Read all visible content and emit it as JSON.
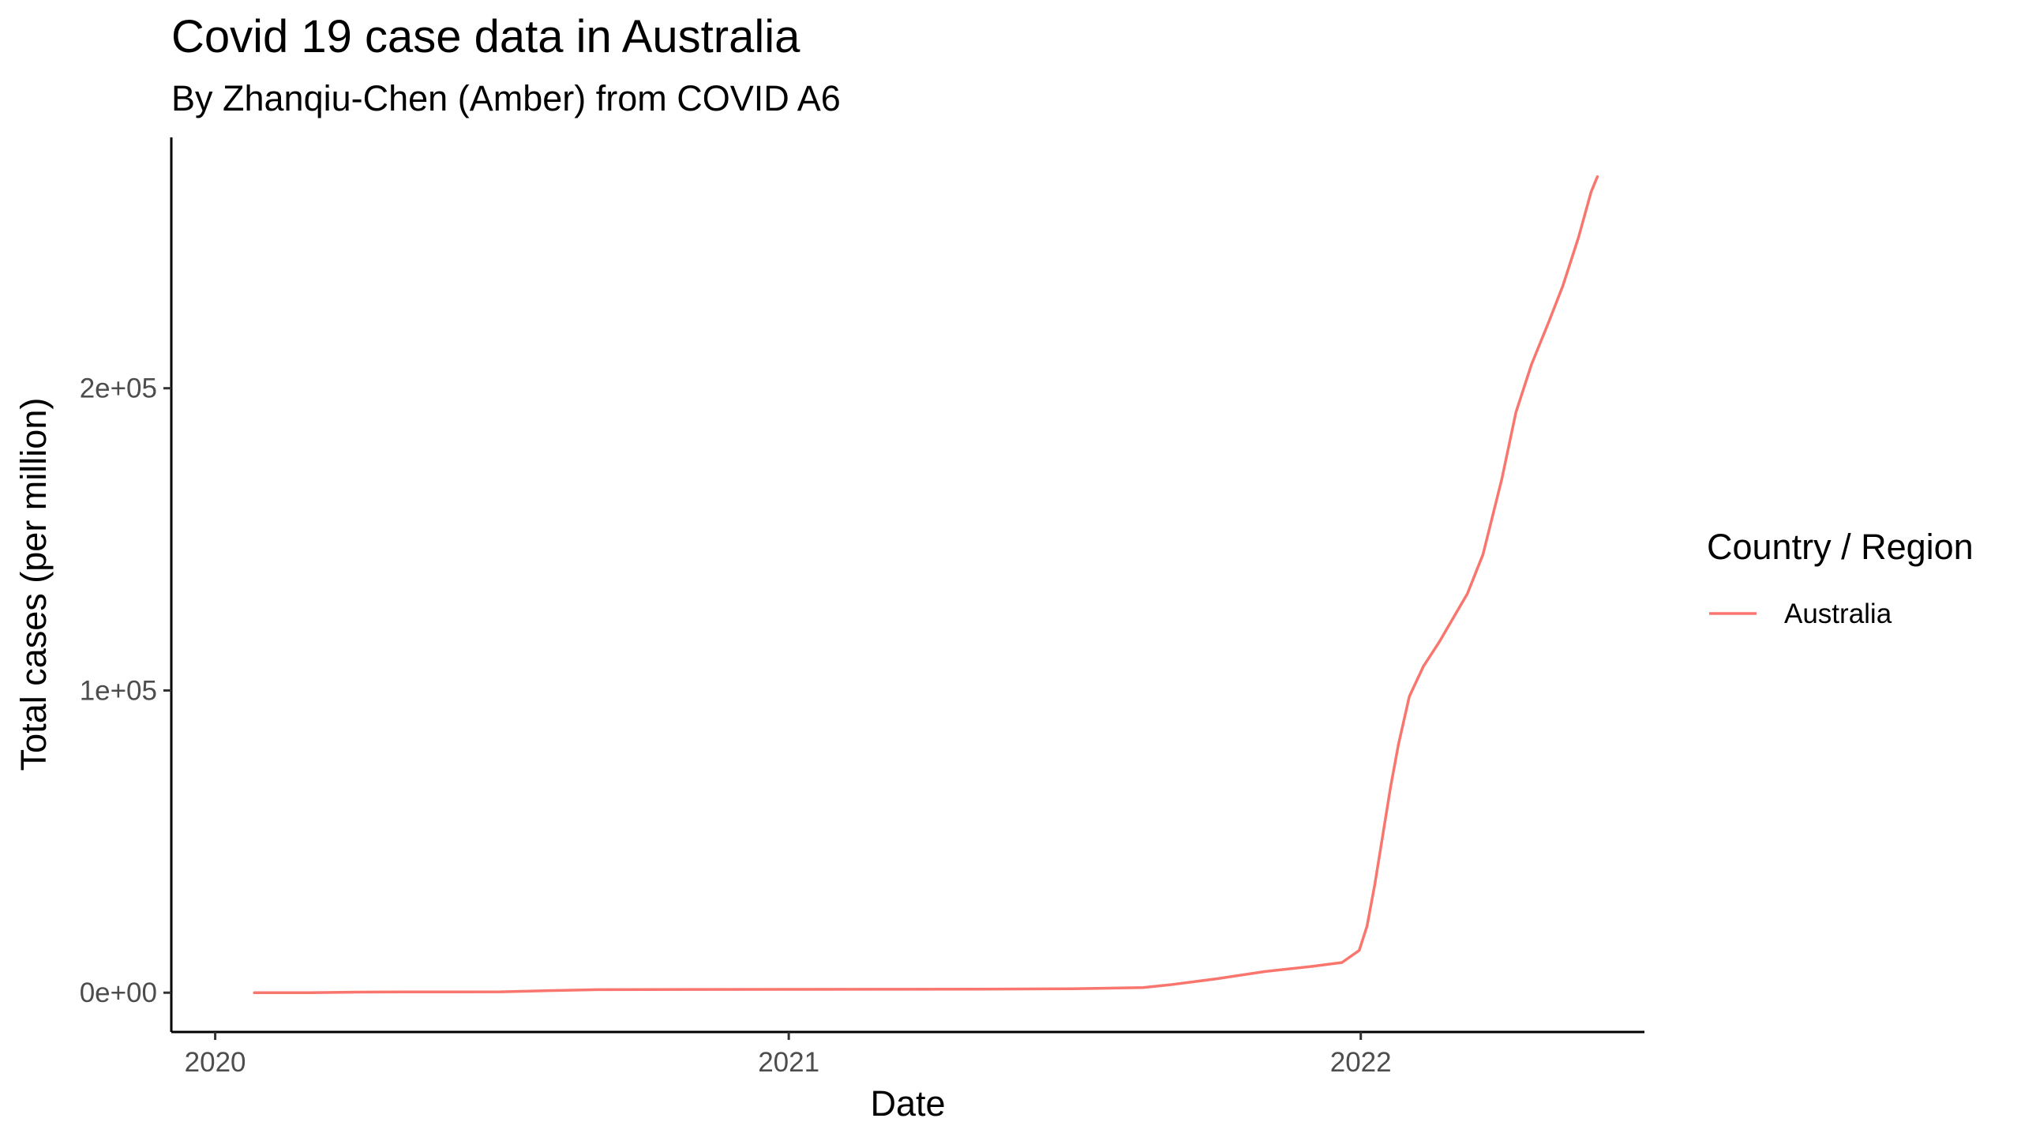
{
  "chart_data": {
    "type": "line",
    "title": "Covid 19 case data in Australia",
    "subtitle": "By Zhanqiu-Chen (Amber) from COVID A6",
    "xlabel": "Date",
    "ylabel": "Total cases (per million)",
    "x_scale": "date",
    "xlim": [
      "2019-12-04",
      "2022-07-01"
    ],
    "ylim": [
      -13000,
      283000
    ],
    "x_ticks": [
      {
        "value": "2020-01-01",
        "label": "2020"
      },
      {
        "value": "2021-01-01",
        "label": "2021"
      },
      {
        "value": "2022-01-01",
        "label": "2022"
      }
    ],
    "y_ticks": [
      {
        "value": 0,
        "label": "0e+00"
      },
      {
        "value": 100000,
        "label": "1e+05"
      },
      {
        "value": 200000,
        "label": "2e+05"
      }
    ],
    "grid": false,
    "legend": {
      "title": "Country / Region",
      "position": "right"
    },
    "series": [
      {
        "name": "Australia",
        "color": "#F8766D",
        "points": [
          [
            "2020-01-26",
            0
          ],
          [
            "2020-03-01",
            3
          ],
          [
            "2020-04-01",
            190
          ],
          [
            "2020-05-01",
            265
          ],
          [
            "2020-06-01",
            280
          ],
          [
            "2020-07-01",
            310
          ],
          [
            "2020-08-01",
            700
          ],
          [
            "2020-09-01",
            1000
          ],
          [
            "2020-10-01",
            1050
          ],
          [
            "2020-11-01",
            1070
          ],
          [
            "2021-01-01",
            1100
          ],
          [
            "2021-03-01",
            1130
          ],
          [
            "2021-05-01",
            1170
          ],
          [
            "2021-07-01",
            1300
          ],
          [
            "2021-08-15",
            1700
          ],
          [
            "2021-09-01",
            2600
          ],
          [
            "2021-10-01",
            4600
          ],
          [
            "2021-11-01",
            7000
          ],
          [
            "2021-12-01",
            8700
          ],
          [
            "2021-12-20",
            10000
          ],
          [
            "2021-12-31",
            14000
          ],
          [
            "2022-01-05",
            22000
          ],
          [
            "2022-01-10",
            36000
          ],
          [
            "2022-01-15",
            52000
          ],
          [
            "2022-01-20",
            68000
          ],
          [
            "2022-01-25",
            82000
          ],
          [
            "2022-02-01",
            98000
          ],
          [
            "2022-02-10",
            108000
          ],
          [
            "2022-02-20",
            116000
          ],
          [
            "2022-03-01",
            124000
          ],
          [
            "2022-03-10",
            132000
          ],
          [
            "2022-03-20",
            145000
          ],
          [
            "2022-04-01",
            170000
          ],
          [
            "2022-04-10",
            192000
          ],
          [
            "2022-04-20",
            208000
          ],
          [
            "2022-05-01",
            222000
          ],
          [
            "2022-05-10",
            234000
          ],
          [
            "2022-05-20",
            250000
          ],
          [
            "2022-05-28",
            265000
          ],
          [
            "2022-06-01",
            270000
          ]
        ]
      }
    ]
  }
}
